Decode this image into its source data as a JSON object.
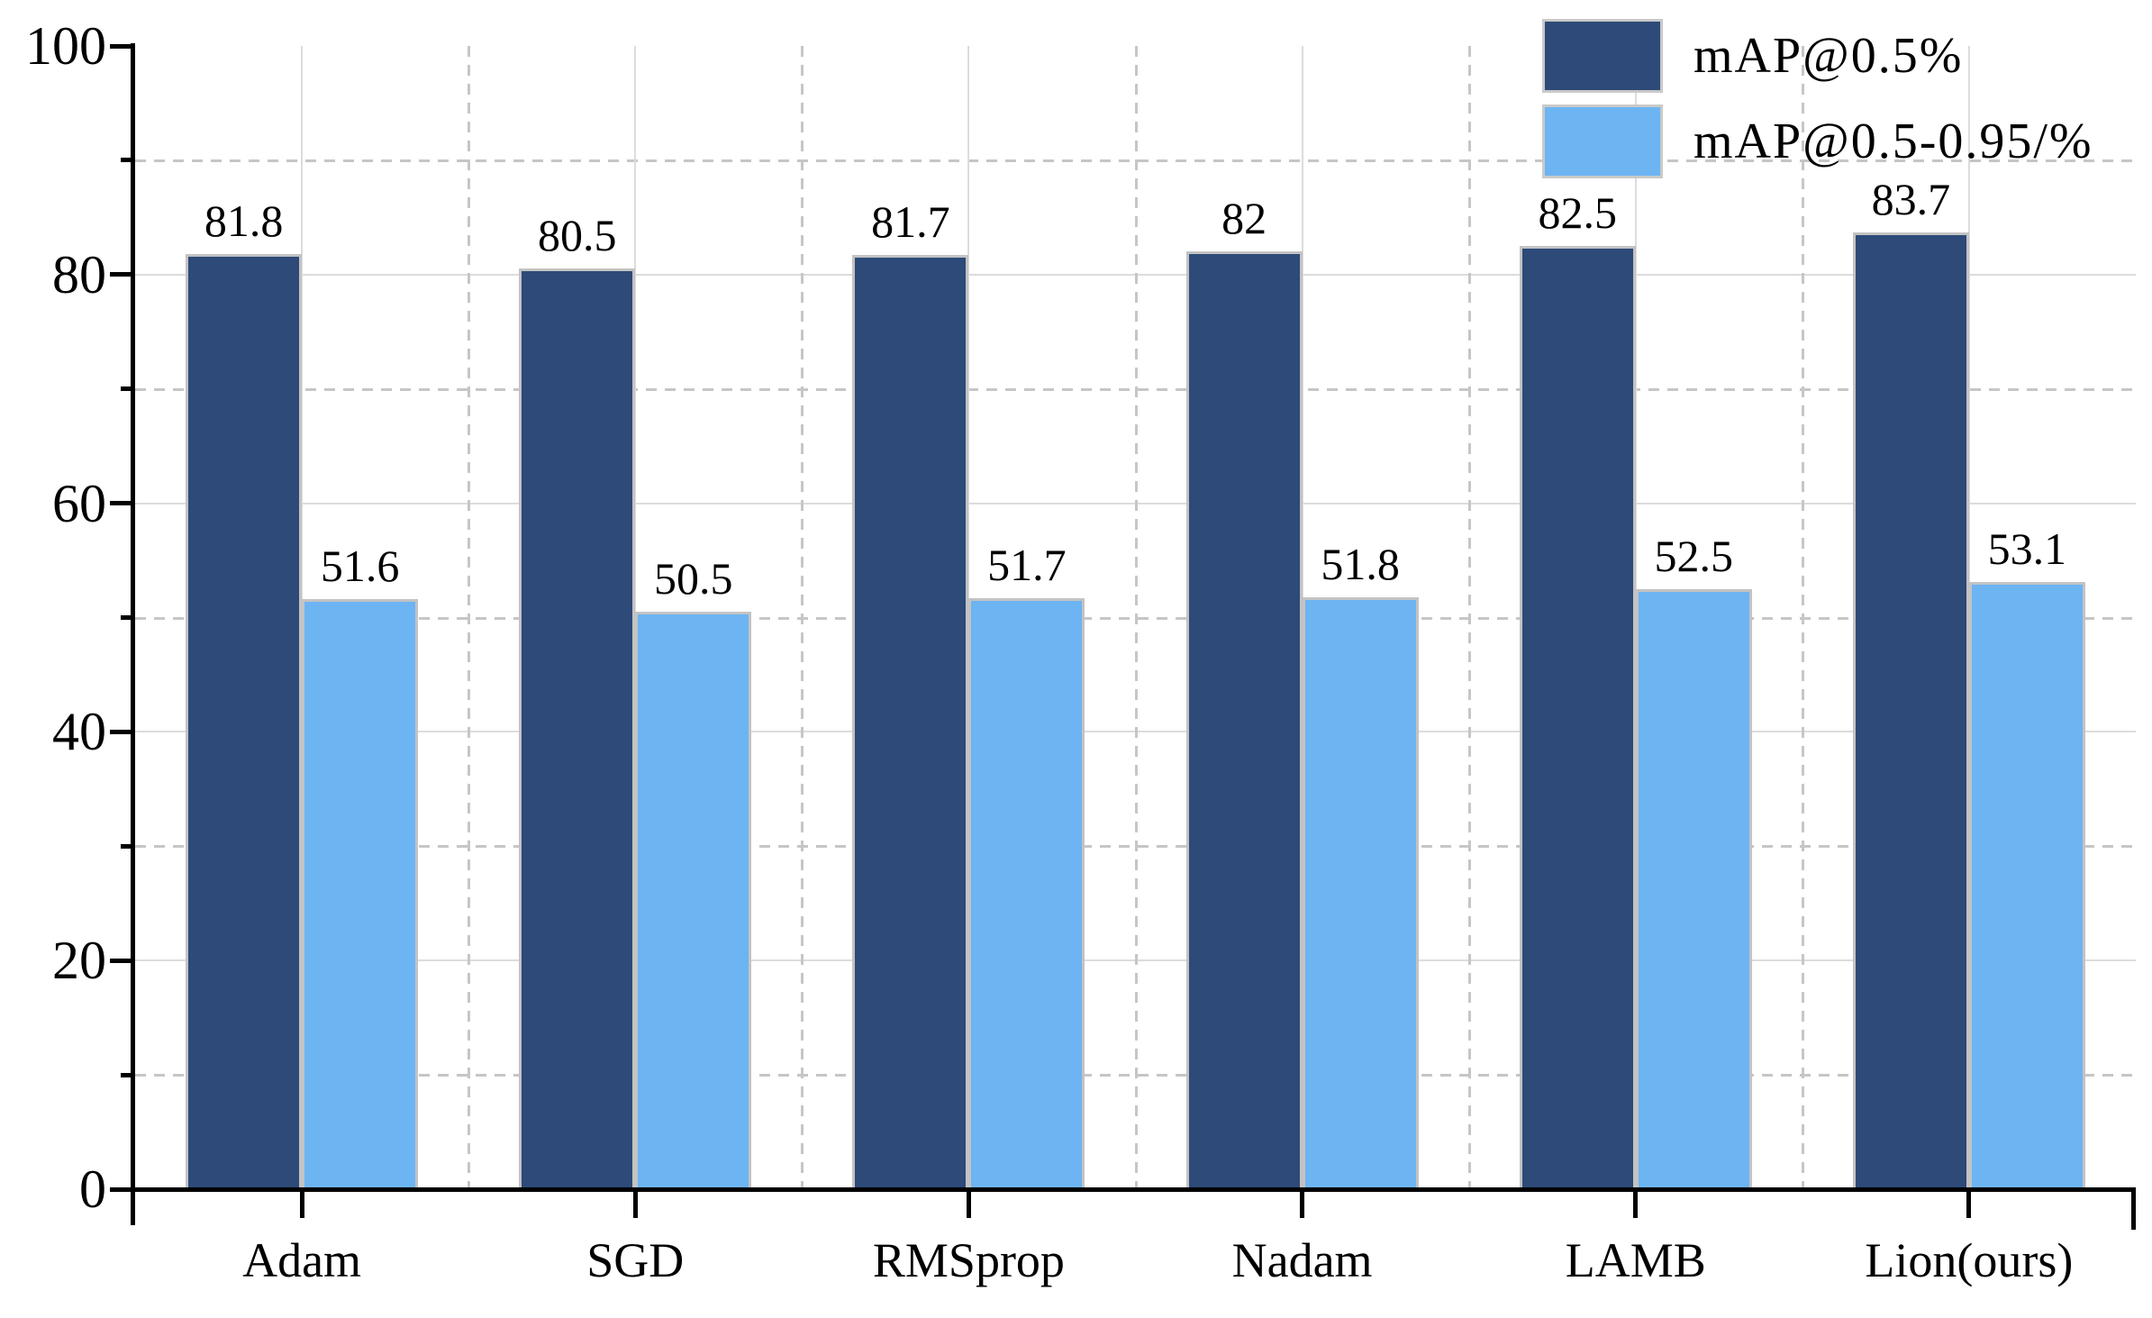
{
  "chart_data": {
    "type": "bar",
    "title": "",
    "xlabel": "",
    "ylabel": "",
    "categories": [
      "Adam",
      "SGD",
      "RMSprop",
      "Nadam",
      "LAMB",
      "Lion(ours)"
    ],
    "series": [
      {
        "name": "mAP@0.5%",
        "color": "#2d4a78",
        "values": [
          81.8,
          80.5,
          81.7,
          82,
          82.5,
          83.7
        ],
        "value_labels": [
          "81.8",
          "80.5",
          "81.7",
          "82",
          "82.5",
          "83.7"
        ]
      },
      {
        "name": "mAP@0.5-0.95/%",
        "color": "#6db4f3",
        "values": [
          51.6,
          50.5,
          51.7,
          51.8,
          52.5,
          53.1
        ],
        "value_labels": [
          "51.6",
          "50.5",
          "51.7",
          "51.8",
          "52.5",
          "53.1"
        ]
      }
    ],
    "ylim": [
      0,
      100
    ],
    "yticks_major": [
      0,
      20,
      40,
      60,
      80,
      100
    ],
    "ytick_labels": [
      "0",
      "20",
      "40",
      "60",
      "80",
      "100"
    ],
    "yticks_minor": [
      10,
      30,
      50,
      70,
      90
    ],
    "grid": {
      "horizontal_major": "solid",
      "horizontal_minor": "dashed",
      "vertical_at_category_centers": "solid",
      "vertical_at_category_boundaries": "dashed"
    },
    "legend_position": "top-right",
    "axis_color": "#000000",
    "grid_solid_color": "#dcdcdc",
    "grid_dashed_color": "#c6c6c6",
    "bar_edge_color": "#c3c3c3"
  }
}
